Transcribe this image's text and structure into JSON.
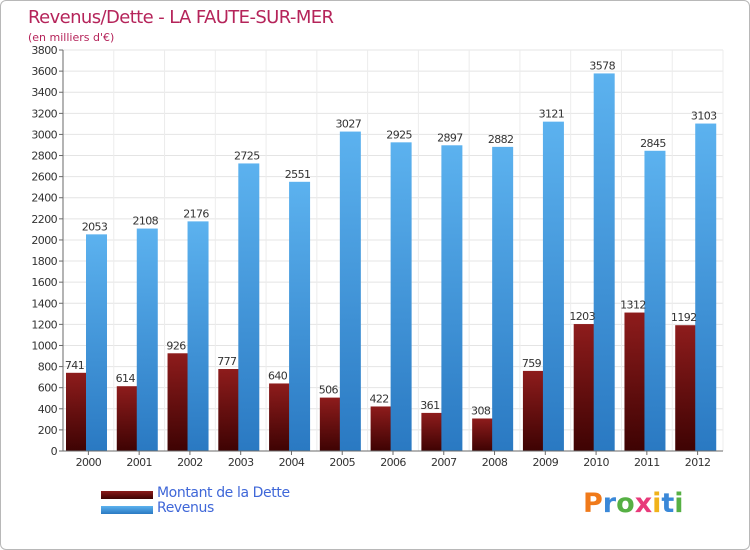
{
  "title": "Revenus/Dette - LA FAUTE-SUR-MER",
  "subtitle": "(en milliers d'€)",
  "logo": "Proxiti",
  "colors": {
    "title": "#b5245a",
    "debt_top": "#8a1a1a",
    "debt_bottom": "#4a0505",
    "revenue_top": "#5aaeec",
    "revenue_bottom": "#2f7fc8",
    "legend_text": "#3f67d8"
  },
  "chart_data": {
    "type": "bar",
    "title": "Revenus/Dette - LA FAUTE-SUR-MER",
    "subtitle": "(en milliers d'€)",
    "categories": [
      "2000",
      "2001",
      "2002",
      "2003",
      "2004",
      "2005",
      "2006",
      "2007",
      "2008",
      "2009",
      "2010",
      "2011",
      "2012"
    ],
    "series": [
      {
        "name": "Montant de la Dette",
        "values": [
          741,
          614,
          926,
          777,
          640,
          506,
          422,
          361,
          308,
          759,
          1203,
          1312,
          1192
        ]
      },
      {
        "name": "Revenus",
        "values": [
          2053,
          2108,
          2176,
          2725,
          2551,
          3027,
          2925,
          2897,
          2882,
          3121,
          3578,
          2845,
          3103
        ]
      }
    ],
    "ylim": [
      0,
      3800
    ],
    "yticks": [
      0,
      200,
      400,
      600,
      800,
      1000,
      1200,
      1400,
      1600,
      1800,
      2000,
      2200,
      2400,
      2600,
      2800,
      3000,
      3200,
      3400,
      3600,
      3800
    ],
    "grid": true,
    "legend": "bottom-left"
  }
}
